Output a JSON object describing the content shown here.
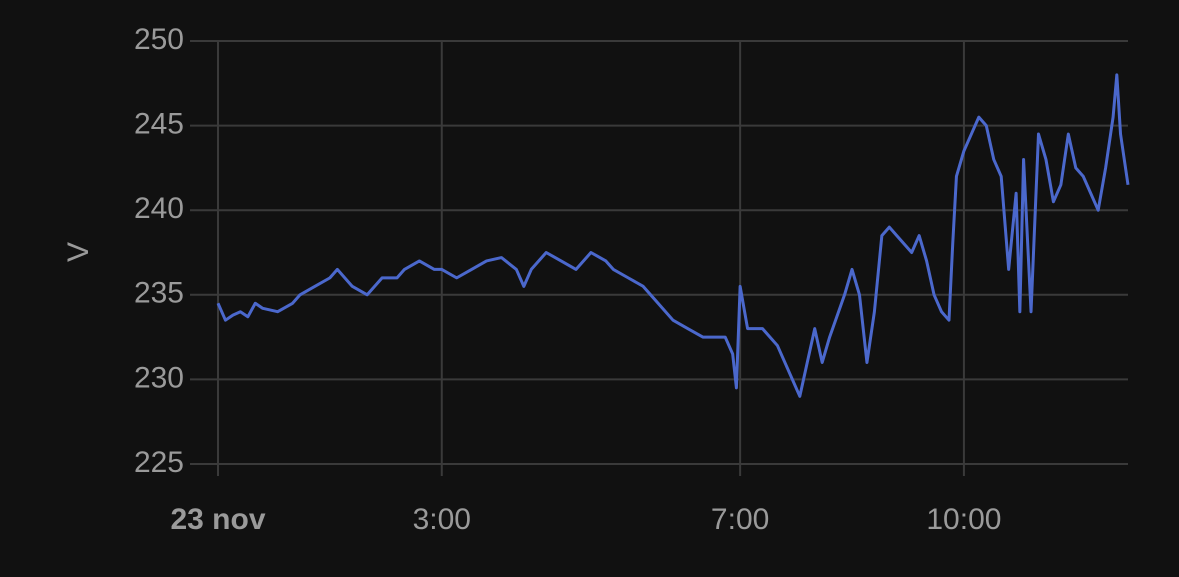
{
  "chart_data": {
    "type": "line",
    "y_label": "V",
    "x": [
      0.0,
      0.1,
      0.2,
      0.3,
      0.4,
      0.5,
      0.6,
      0.8,
      1.0,
      1.1,
      1.3,
      1.5,
      1.6,
      1.8,
      2.0,
      2.2,
      2.4,
      2.5,
      2.7,
      2.9,
      3.0,
      3.2,
      3.4,
      3.6,
      3.8,
      4.0,
      4.1,
      4.2,
      4.4,
      4.6,
      4.8,
      5.0,
      5.2,
      5.3,
      5.5,
      5.7,
      5.9,
      6.1,
      6.3,
      6.5,
      6.8,
      6.9,
      6.95,
      7.0,
      7.1,
      7.3,
      7.5,
      7.7,
      7.8,
      7.9,
      8.0,
      8.1,
      8.2,
      8.4,
      8.5,
      8.6,
      8.7,
      8.8,
      8.9,
      9.0,
      9.1,
      9.3,
      9.4,
      9.5,
      9.6,
      9.7,
      9.8,
      9.85,
      9.9,
      10.0,
      10.1,
      10.2,
      10.3,
      10.4,
      10.5,
      10.6,
      10.7,
      10.75,
      10.8,
      10.9,
      11.0,
      11.1,
      11.2,
      11.3,
      11.4,
      11.5,
      11.6,
      11.7,
      11.8,
      11.9,
      12.0,
      12.05,
      12.1,
      12.2
    ],
    "series": [
      {
        "name": "V",
        "color": "#4b68cc",
        "values": [
          234.5,
          233.5,
          233.8,
          234,
          233.7,
          234.5,
          234.2,
          234,
          234.5,
          235,
          235.5,
          236,
          236.5,
          235.5,
          235,
          236,
          236,
          236.5,
          237,
          236.5,
          236.5,
          236,
          236.5,
          237,
          237.2,
          236.5,
          235.5,
          236.5,
          237.5,
          237,
          236.5,
          237.5,
          237,
          236.5,
          236,
          235.5,
          234.5,
          233.5,
          233,
          232.5,
          232.5,
          231.5,
          229.5,
          235.5,
          233,
          233,
          232,
          230,
          229,
          231,
          233,
          231,
          232.5,
          235,
          236.5,
          235,
          231,
          234,
          238.5,
          239,
          238.5,
          237.5,
          238.5,
          237,
          235,
          234,
          233.5,
          238,
          242,
          243.5,
          244.5,
          245.5,
          245,
          243,
          242,
          236.5,
          241,
          234,
          243,
          234,
          244.5,
          243,
          240.5,
          241.5,
          244.5,
          242.5,
          242,
          241,
          240,
          242.5,
          245.5,
          248,
          244.5,
          241.5
        ]
      }
    ],
    "xlim": [
      0,
      12.2
    ],
    "xticks": [
      {
        "value": 0,
        "label": "23 nov"
      },
      {
        "value": 3,
        "label": "3:00"
      },
      {
        "value": 7,
        "label": "7:00"
      },
      {
        "value": 10,
        "label": "10:00"
      }
    ],
    "ylim": [
      225,
      250
    ],
    "yticks": [
      225,
      230,
      235,
      240,
      245,
      250
    ],
    "grid": true
  }
}
